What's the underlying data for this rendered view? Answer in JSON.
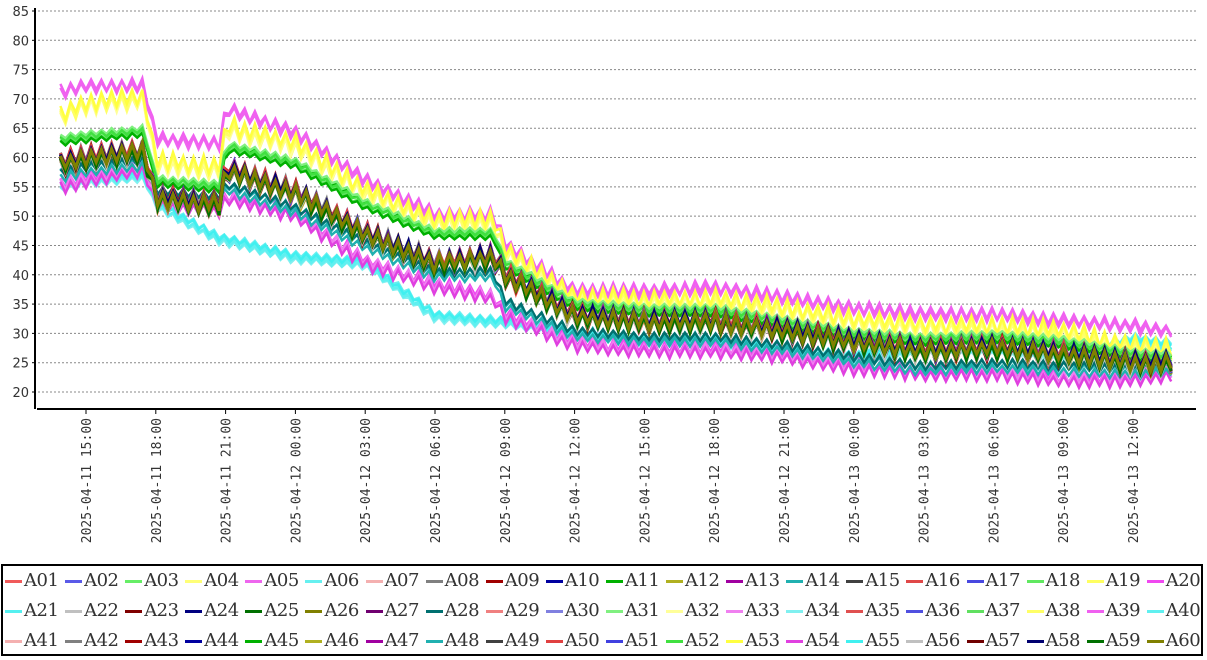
{
  "chart_data": {
    "type": "line",
    "title": "",
    "xlabel": "",
    "ylabel": "",
    "ylim": [
      20,
      85
    ],
    "grid": true,
    "legend_position": "bottom",
    "y_ticks": [
      "20",
      "25",
      "30",
      "35",
      "40",
      "45",
      "50",
      "55",
      "60",
      "65",
      "70",
      "75",
      "80",
      "85"
    ],
    "x_ticks": [
      "2025-04-11  15:00",
      "2025-04-11  18:00",
      "2025-04-11  21:00",
      "2025-04-12  00:00",
      "2025-04-12  03:00",
      "2025-04-12  06:00",
      "2025-04-12  09:00",
      "2025-04-12  12:00",
      "2025-04-12  15:00",
      "2025-04-12  18:00",
      "2025-04-12  21:00",
      "2025-04-13  00:00",
      "2025-04-13  03:00",
      "2025-04-13  06:00",
      "2025-04-13  09:00",
      "2025-04-13  12:00"
    ],
    "x_hours_note": "hours since 2025-04-11 15:00",
    "x_range_hours": [
      -1.1,
      46.7
    ],
    "profile_x_hours": [
      -1.1,
      0,
      2.5,
      3.0,
      5.8,
      6.0,
      9,
      12,
      15,
      17.5,
      18,
      21,
      24,
      27,
      30,
      33,
      36,
      39,
      42,
      45,
      46.7
    ],
    "band_profiles": {
      "pink_top": [
        71,
        72,
        72,
        63,
        62,
        68,
        64,
        56,
        50,
        50,
        45,
        37,
        37,
        37.5,
        36,
        34,
        33,
        33,
        32,
        31,
        30
      ],
      "yellow": [
        67,
        69,
        70,
        59,
        58,
        65,
        62,
        54,
        49,
        49,
        44,
        36,
        35.5,
        35.5,
        34,
        32,
        31,
        31,
        30,
        27.5,
        27
      ],
      "green": [
        63,
        63.5,
        64.5,
        56,
        55,
        62,
        59,
        52,
        47,
        47,
        42,
        35,
        34,
        34,
        32,
        30,
        29,
        29.5,
        28.5,
        26.5,
        26
      ],
      "red": [
        59,
        60,
        61,
        53,
        52,
        58,
        54,
        47,
        42,
        43,
        40,
        33,
        32,
        32,
        30.5,
        28.5,
        27,
        27.5,
        26.5,
        25,
        25
      ],
      "lower_pink": [
        55,
        56,
        58,
        52,
        51,
        53,
        50,
        42,
        38,
        36,
        33,
        28,
        27,
        27,
        26,
        24,
        23,
        23,
        22,
        22,
        23
      ],
      "teal": [
        57,
        58,
        59,
        54,
        53,
        55,
        51,
        45,
        40,
        40,
        35,
        30,
        29,
        29,
        27.5,
        25.5,
        24,
        24.5,
        24,
        23.5,
        24
      ],
      "cyan": [
        55,
        56,
        57,
        52,
        46,
        46,
        43,
        42,
        33,
        32,
        32,
        30,
        29,
        29,
        27,
        26,
        27,
        27,
        26,
        29,
        28
      ]
    },
    "series": [
      {
        "name": "A01",
        "color": "#f05a5a",
        "band": "red"
      },
      {
        "name": "A02",
        "color": "#5a5ae8",
        "band": "red"
      },
      {
        "name": "A03",
        "color": "#66ee66",
        "band": "green"
      },
      {
        "name": "A04",
        "color": "#ffff77",
        "band": "yellow"
      },
      {
        "name": "A05",
        "color": "#ee66ee",
        "band": "pink_top"
      },
      {
        "name": "A06",
        "color": "#66f0f0",
        "band": "cyan"
      },
      {
        "name": "A07",
        "color": "#f4b0b0",
        "band": "red"
      },
      {
        "name": "A08",
        "color": "#808080",
        "band": "red"
      },
      {
        "name": "A09",
        "color": "#a00000",
        "band": "red"
      },
      {
        "name": "A10",
        "color": "#0000a0",
        "band": "red"
      },
      {
        "name": "A11",
        "color": "#00b000",
        "band": "green"
      },
      {
        "name": "A12",
        "color": "#b0b020",
        "band": "red"
      },
      {
        "name": "A13",
        "color": "#a000a0",
        "band": "red"
      },
      {
        "name": "A14",
        "color": "#20b0b0",
        "band": "teal"
      },
      {
        "name": "A15",
        "color": "#404040",
        "band": "red"
      },
      {
        "name": "A16",
        "color": "#e04848",
        "band": "red"
      },
      {
        "name": "A17",
        "color": "#4848e0",
        "band": "red"
      },
      {
        "name": "A18",
        "color": "#60e860",
        "band": "green"
      },
      {
        "name": "A19",
        "color": "#ffff60",
        "band": "yellow"
      },
      {
        "name": "A20",
        "color": "#f048f0",
        "band": "lower_pink"
      },
      {
        "name": "A21",
        "color": "#55f0f0",
        "band": "cyan"
      },
      {
        "name": "A22",
        "color": "#c0c0c0",
        "band": "red"
      },
      {
        "name": "A23",
        "color": "#800000",
        "band": "red"
      },
      {
        "name": "A24",
        "color": "#000080",
        "band": "red"
      },
      {
        "name": "A25",
        "color": "#007000",
        "band": "red"
      },
      {
        "name": "A26",
        "color": "#808000",
        "band": "red"
      },
      {
        "name": "A27",
        "color": "#700070",
        "band": "red"
      },
      {
        "name": "A28",
        "color": "#007070",
        "band": "teal"
      },
      {
        "name": "A29",
        "color": "#f08080",
        "band": "red"
      },
      {
        "name": "A30",
        "color": "#8080e0",
        "band": "red"
      },
      {
        "name": "A31",
        "color": "#80f080",
        "band": "green"
      },
      {
        "name": "A32",
        "color": "#ffff99",
        "band": "yellow"
      },
      {
        "name": "A33",
        "color": "#f080f0",
        "band": "lower_pink"
      },
      {
        "name": "A34",
        "color": "#80f0f0",
        "band": "cyan"
      },
      {
        "name": "A35",
        "color": "#e05050",
        "band": "red"
      },
      {
        "name": "A36",
        "color": "#5050e0",
        "band": "red"
      },
      {
        "name": "A37",
        "color": "#60e060",
        "band": "green"
      },
      {
        "name": "A38",
        "color": "#ffff66",
        "band": "yellow"
      },
      {
        "name": "A39",
        "color": "#f060f0",
        "band": "pink_top"
      },
      {
        "name": "A40",
        "color": "#60f0f0",
        "band": "cyan"
      },
      {
        "name": "A41",
        "color": "#f4b0b0",
        "band": "red"
      },
      {
        "name": "A42",
        "color": "#808080",
        "band": "red"
      },
      {
        "name": "A43",
        "color": "#a00000",
        "band": "red"
      },
      {
        "name": "A44",
        "color": "#0000a0",
        "band": "red"
      },
      {
        "name": "A45",
        "color": "#00b000",
        "band": "green"
      },
      {
        "name": "A46",
        "color": "#b0b020",
        "band": "red"
      },
      {
        "name": "A47",
        "color": "#a000a0",
        "band": "red"
      },
      {
        "name": "A48",
        "color": "#20b0b0",
        "band": "teal"
      },
      {
        "name": "A49",
        "color": "#404040",
        "band": "red"
      },
      {
        "name": "A50",
        "color": "#e04040",
        "band": "red"
      },
      {
        "name": "A51",
        "color": "#4040e0",
        "band": "red"
      },
      {
        "name": "A52",
        "color": "#40e040",
        "band": "green"
      },
      {
        "name": "A53",
        "color": "#ffff40",
        "band": "yellow"
      },
      {
        "name": "A54",
        "color": "#e040e0",
        "band": "lower_pink"
      },
      {
        "name": "A55",
        "color": "#40f0f0",
        "band": "cyan"
      },
      {
        "name": "A56",
        "color": "#c0c0c0",
        "band": "red"
      },
      {
        "name": "A57",
        "color": "#700000",
        "band": "red"
      },
      {
        "name": "A58",
        "color": "#000070",
        "band": "red"
      },
      {
        "name": "A59",
        "color": "#007000",
        "band": "red"
      },
      {
        "name": "A60",
        "color": "#808000",
        "band": "red"
      }
    ]
  }
}
